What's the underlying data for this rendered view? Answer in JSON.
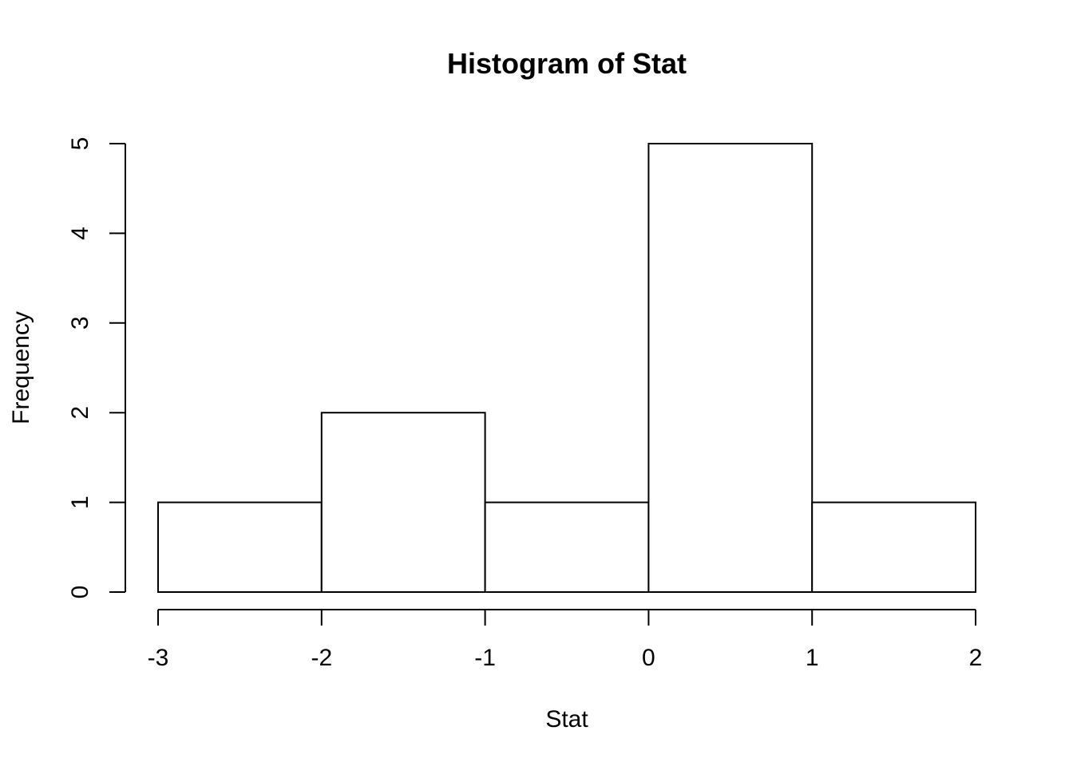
{
  "chart_data": {
    "type": "bar",
    "title": "Histogram of Stat",
    "xlabel": "Stat",
    "ylabel": "Frequency",
    "bins": [
      {
        "from": -3,
        "to": -2,
        "count": 1
      },
      {
        "from": -2,
        "to": -1,
        "count": 2
      },
      {
        "from": -1,
        "to": 0,
        "count": 1
      },
      {
        "from": 0,
        "to": 1,
        "count": 5
      },
      {
        "from": 1,
        "to": 2,
        "count": 1
      }
    ],
    "xlim": [
      -3,
      2
    ],
    "ylim": [
      0,
      5
    ],
    "x_ticks": [
      -3,
      -2,
      -1,
      0,
      1,
      2
    ],
    "x_tick_labels": [
      "-3",
      "-2",
      "-1",
      "0",
      "1",
      "2"
    ],
    "y_ticks": [
      0,
      1,
      2,
      3,
      4,
      5
    ],
    "y_tick_labels": [
      "0",
      "1",
      "2",
      "3",
      "4",
      "5"
    ],
    "grid": false,
    "colors": {
      "bar_fill": "#ffffff",
      "bar_stroke": "#000000"
    }
  }
}
